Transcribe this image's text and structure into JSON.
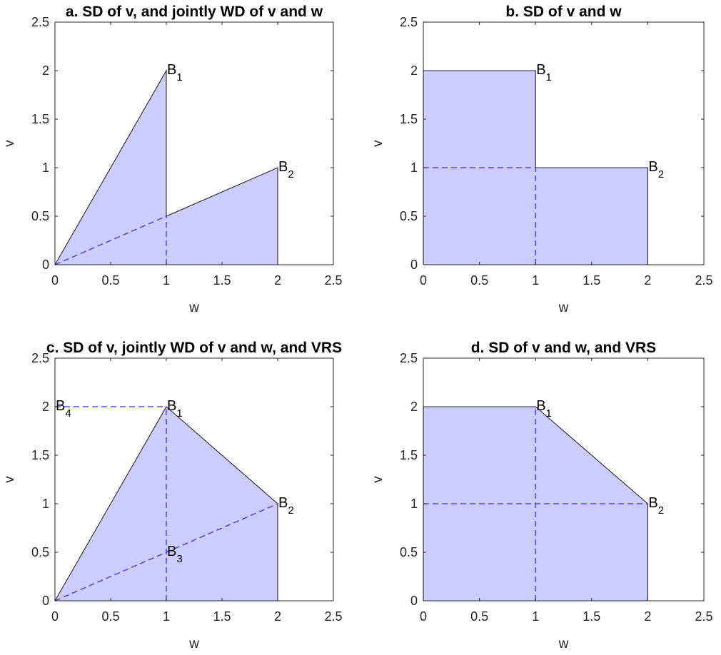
{
  "colors": {
    "fill": "#ccccff",
    "outline": "#262626",
    "dashed": "#3333ee",
    "axis": "#262626"
  },
  "chart_data": [
    {
      "type": "area",
      "title": "a. SD of v, and jointly WD of v and w",
      "xlabel": "w",
      "ylabel": "v",
      "xlim": [
        0,
        2.5
      ],
      "ylim": [
        0,
        2.5
      ],
      "xticks": [
        "0",
        "0.5",
        "1",
        "1.5",
        "2",
        "2.5"
      ],
      "yticks": [
        "0",
        "0.5",
        "1",
        "1.5",
        "2",
        "2.5"
      ],
      "grid": false,
      "region": [
        [
          0,
          0
        ],
        [
          1,
          2
        ],
        [
          1,
          0.5
        ],
        [
          2,
          1
        ],
        [
          2,
          0
        ]
      ],
      "dashed_lines": [
        [
          [
            0,
            0
          ],
          [
            1,
            0.5
          ]
        ],
        [
          [
            1,
            0
          ],
          [
            1,
            0.5
          ]
        ]
      ],
      "points": [
        {
          "label": "B",
          "sub": "1",
          "x": 1,
          "y": 2
        },
        {
          "label": "B",
          "sub": "2",
          "x": 2,
          "y": 1
        }
      ]
    },
    {
      "type": "area",
      "title": "b. SD of v and w",
      "xlabel": "w",
      "ylabel": "v",
      "xlim": [
        0,
        2.5
      ],
      "ylim": [
        0,
        2.5
      ],
      "xticks": [
        "0",
        "0.5",
        "1",
        "1.5",
        "2",
        "2.5"
      ],
      "yticks": [
        "0",
        "0.5",
        "1",
        "1.5",
        "2",
        "2.5"
      ],
      "grid": false,
      "region": [
        [
          0,
          0
        ],
        [
          0,
          2
        ],
        [
          1,
          2
        ],
        [
          1,
          1
        ],
        [
          2,
          1
        ],
        [
          2,
          0
        ]
      ],
      "dashed_lines": [
        [
          [
            0,
            1
          ],
          [
            1,
            1
          ]
        ],
        [
          [
            1,
            0
          ],
          [
            1,
            1
          ]
        ]
      ],
      "points": [
        {
          "label": "B",
          "sub": "1",
          "x": 1,
          "y": 2
        },
        {
          "label": "B",
          "sub": "2",
          "x": 2,
          "y": 1
        }
      ]
    },
    {
      "type": "area",
      "title": "c. SD of v, jointly WD of v and w, and VRS",
      "xlabel": "w",
      "ylabel": "v",
      "xlim": [
        0,
        2.5
      ],
      "ylim": [
        0,
        2.5
      ],
      "xticks": [
        "0",
        "0.5",
        "1",
        "1.5",
        "2",
        "2.5"
      ],
      "yticks": [
        "0",
        "0.5",
        "1",
        "1.5",
        "2",
        "2.5"
      ],
      "grid": false,
      "region": [
        [
          0,
          0
        ],
        [
          1,
          2
        ],
        [
          2,
          1
        ],
        [
          2,
          0
        ]
      ],
      "dashed_lines": [
        [
          [
            0,
            2
          ],
          [
            1,
            2
          ]
        ],
        [
          [
            1,
            0
          ],
          [
            1,
            2
          ]
        ],
        [
          [
            0,
            0
          ],
          [
            2,
            1
          ]
        ]
      ],
      "points": [
        {
          "label": "B",
          "sub": "1",
          "x": 1,
          "y": 2
        },
        {
          "label": "B",
          "sub": "2",
          "x": 2,
          "y": 1
        },
        {
          "label": "B",
          "sub": "3",
          "x": 1,
          "y": 0.5
        },
        {
          "label": "B",
          "sub": "4",
          "x": 0,
          "y": 2
        }
      ]
    },
    {
      "type": "area",
      "title": "d. SD of v and w, and VRS",
      "xlabel": "w",
      "ylabel": "v",
      "xlim": [
        0,
        2.5
      ],
      "ylim": [
        0,
        2.5
      ],
      "xticks": [
        "0",
        "0.5",
        "1",
        "1.5",
        "2",
        "2.5"
      ],
      "yticks": [
        "0",
        "0.5",
        "1",
        "1.5",
        "2",
        "2.5"
      ],
      "grid": false,
      "region": [
        [
          0,
          0
        ],
        [
          0,
          2
        ],
        [
          1,
          2
        ],
        [
          2,
          1
        ],
        [
          2,
          0
        ]
      ],
      "dashed_lines": [
        [
          [
            0,
            1
          ],
          [
            2,
            1
          ]
        ],
        [
          [
            1,
            0
          ],
          [
            1,
            2
          ]
        ]
      ],
      "points": [
        {
          "label": "B",
          "sub": "1",
          "x": 1,
          "y": 2
        },
        {
          "label": "B",
          "sub": "2",
          "x": 2,
          "y": 1
        }
      ]
    }
  ]
}
